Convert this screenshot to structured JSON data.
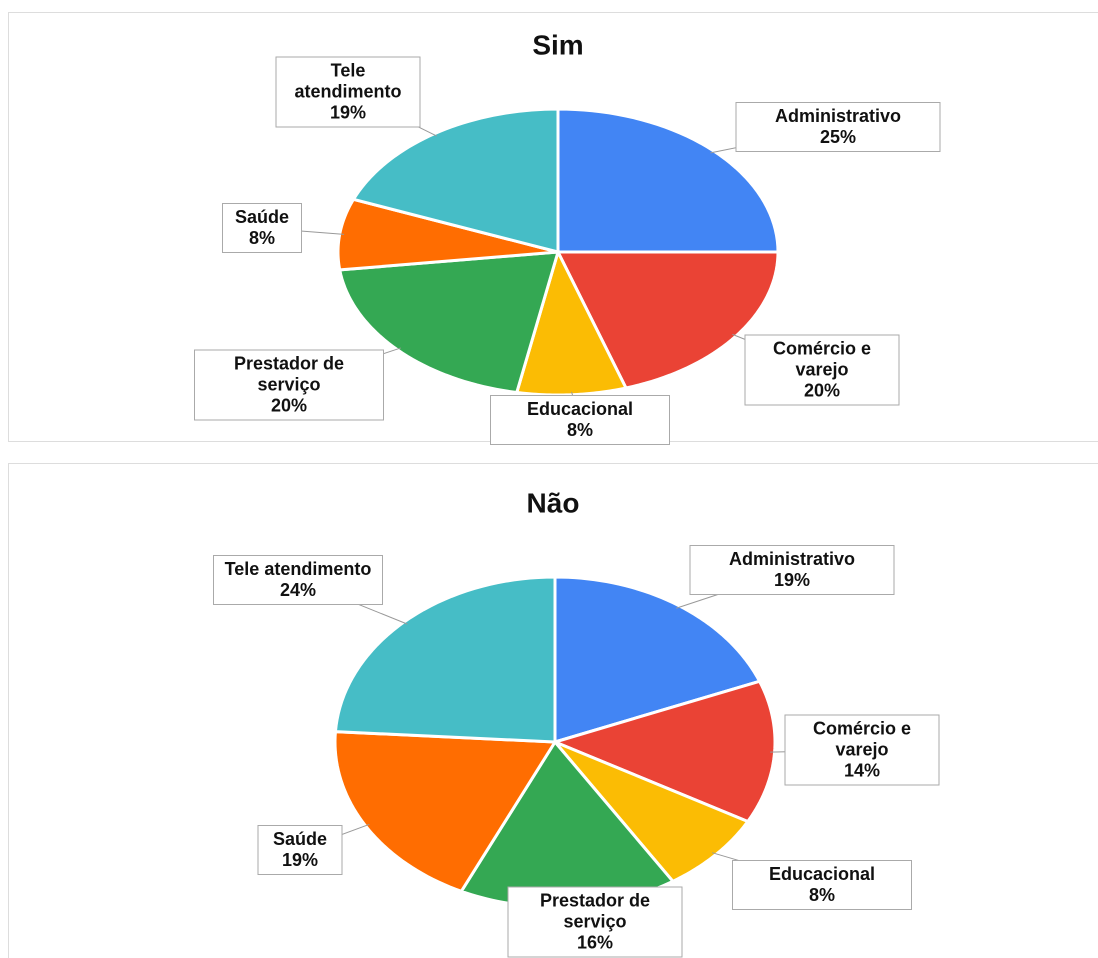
{
  "chart_data": [
    {
      "type": "pie",
      "title": "Sim",
      "categories": [
        "Administrativo",
        "Comércio e varejo",
        "Educacional",
        "Prestador de serviço",
        "Saúde",
        "Tele atendimento"
      ],
      "values": [
        25,
        20,
        8,
        20,
        8,
        19
      ],
      "value_labels": [
        "25%",
        "20%",
        "8%",
        "20%",
        "8%",
        "19%"
      ],
      "colors": [
        "#4285f4",
        "#ea4335",
        "#fbbc04",
        "#34a853",
        "#ff6d01",
        "#46bdc6"
      ]
    },
    {
      "type": "pie",
      "title": "Não",
      "categories": [
        "Administrativo",
        "Comércio e varejo",
        "Educacional",
        "Prestador de serviço",
        "Saúde",
        "Tele atendimento"
      ],
      "values": [
        19,
        14,
        8,
        16,
        19,
        24
      ],
      "value_labels": [
        "19%",
        "14%",
        "8%",
        "16%",
        "19%",
        "24%"
      ],
      "colors": [
        "#4285f4",
        "#ea4335",
        "#fbbc04",
        "#34a853",
        "#ff6d01",
        "#46bdc6"
      ]
    }
  ]
}
